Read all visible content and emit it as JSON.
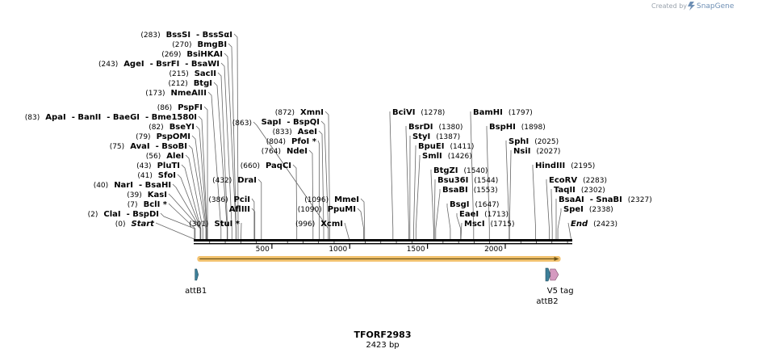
{
  "credit": {
    "prefix": "Created by",
    "brand": "SnapGene"
  },
  "map": {
    "name": "TFORF2983",
    "length_label": "2423 bp",
    "length": 2423,
    "ticks": [
      {
        "value": 500,
        "label": "500"
      },
      {
        "value": 1000,
        "label": "1000"
      },
      {
        "value": 1500,
        "label": "1500"
      },
      {
        "value": 2000,
        "label": "2000"
      }
    ]
  },
  "sites": [
    {
      "id": "bsssi",
      "pos": 283,
      "parts": [
        {
          "t": "(283)",
          "k": "p"
        },
        {
          "t": "BssSI",
          "k": "n"
        },
        {
          "t": "- BssSαI",
          "k": "n"
        }
      ]
    },
    {
      "id": "bmgbi",
      "pos": 270,
      "parts": [
        {
          "t": "(270)",
          "k": "p"
        },
        {
          "t": "BmgBI",
          "k": "n"
        }
      ]
    },
    {
      "id": "bsihkai",
      "pos": 269,
      "parts": [
        {
          "t": "(269)",
          "k": "p"
        },
        {
          "t": "BsiHKAI",
          "k": "n"
        }
      ]
    },
    {
      "id": "agei",
      "pos": 243,
      "parts": [
        {
          "t": "(243)",
          "k": "p"
        },
        {
          "t": "AgeI",
          "k": "n"
        },
        {
          "t": "- BsrFI",
          "k": "n"
        },
        {
          "t": "- BsaWI",
          "k": "n"
        }
      ]
    },
    {
      "id": "sacii",
      "pos": 215,
      "parts": [
        {
          "t": "(215)",
          "k": "p"
        },
        {
          "t": "SacII",
          "k": "n"
        }
      ]
    },
    {
      "id": "btgi",
      "pos": 212,
      "parts": [
        {
          "t": "(212)",
          "k": "p"
        },
        {
          "t": "BtgI",
          "k": "n"
        }
      ]
    },
    {
      "id": "nmeaiii",
      "pos": 173,
      "parts": [
        {
          "t": "(173)",
          "k": "p"
        },
        {
          "t": "NmeAIII",
          "k": "n"
        }
      ]
    },
    {
      "id": "pspfi",
      "pos": 86,
      "parts": [
        {
          "t": "(86)",
          "k": "p"
        },
        {
          "t": "PspFI",
          "k": "n"
        }
      ]
    },
    {
      "id": "apai",
      "pos": 83,
      "parts": [
        {
          "t": "(83)",
          "k": "p"
        },
        {
          "t": "ApaI",
          "k": "n"
        },
        {
          "t": "- BanII",
          "k": "n"
        },
        {
          "t": "- BaeGI",
          "k": "n"
        },
        {
          "t": "- Bme1580I",
          "k": "n"
        }
      ]
    },
    {
      "id": "bseyi",
      "pos": 82,
      "parts": [
        {
          "t": "(82)",
          "k": "p"
        },
        {
          "t": "BseYI",
          "k": "n"
        }
      ]
    },
    {
      "id": "pspomi",
      "pos": 79,
      "parts": [
        {
          "t": "(79)",
          "k": "p"
        },
        {
          "t": "PspOMI",
          "k": "n"
        }
      ]
    },
    {
      "id": "avai",
      "pos": 75,
      "parts": [
        {
          "t": "(75)",
          "k": "p"
        },
        {
          "t": "AvaI",
          "k": "n"
        },
        {
          "t": "- BsoBI",
          "k": "n"
        }
      ]
    },
    {
      "id": "alei",
      "pos": 56,
      "parts": [
        {
          "t": "(56)",
          "k": "p"
        },
        {
          "t": "AleI",
          "k": "n"
        }
      ]
    },
    {
      "id": "pluti",
      "pos": 43,
      "parts": [
        {
          "t": "(43)",
          "k": "p"
        },
        {
          "t": "PluTI",
          "k": "n"
        }
      ]
    },
    {
      "id": "sfoi",
      "pos": 41,
      "parts": [
        {
          "t": "(41)",
          "k": "p"
        },
        {
          "t": "SfoI",
          "k": "n"
        }
      ]
    },
    {
      "id": "nari",
      "pos": 40,
      "parts": [
        {
          "t": "(40)",
          "k": "p"
        },
        {
          "t": "NarI",
          "k": "n"
        },
        {
          "t": "- BsaHI",
          "k": "n"
        }
      ]
    },
    {
      "id": "kasi",
      "pos": 39,
      "parts": [
        {
          "t": "(39)",
          "k": "p"
        },
        {
          "t": "KasI",
          "k": "n"
        }
      ]
    },
    {
      "id": "bcli",
      "pos": 7,
      "parts": [
        {
          "t": "(7)",
          "k": "p"
        },
        {
          "t": "BclI *",
          "k": "n"
        }
      ]
    },
    {
      "id": "clai",
      "pos": 2,
      "parts": [
        {
          "t": "(2)",
          "k": "p"
        },
        {
          "t": "ClaI",
          "k": "n"
        },
        {
          "t": "- BspDI",
          "k": "n"
        }
      ]
    },
    {
      "id": "start",
      "pos": 0,
      "parts": [
        {
          "t": "(0)",
          "k": "p"
        },
        {
          "t": "Start",
          "k": "i"
        }
      ]
    },
    {
      "id": "bsp1",
      "pos": 863,
      "parts": [
        {
          "t": "(863)",
          "k": "p"
        }
      ]
    },
    {
      "id": "drai",
      "pos": 432,
      "parts": [
        {
          "t": "(432)",
          "k": "p"
        },
        {
          "t": "DraI",
          "k": "n"
        }
      ]
    },
    {
      "id": "pcii",
      "pos": 386,
      "parts": [
        {
          "t": "(386)",
          "k": "p"
        },
        {
          "t": "PciI",
          "k": "n"
        }
      ]
    },
    {
      "id": "afliii",
      "pos": 390,
      "parts": [
        {
          "t": "AflIII",
          "k": "n"
        }
      ]
    },
    {
      "id": "stui",
      "pos": 301,
      "parts": [
        {
          "t": "(301)",
          "k": "p"
        },
        {
          "t": "StuI *",
          "k": "n"
        }
      ]
    },
    {
      "id": "xmni",
      "pos": 872,
      "parts": [
        {
          "t": "(872)",
          "k": "p"
        },
        {
          "t": "XmnI",
          "k": "n"
        }
      ]
    },
    {
      "id": "sapi",
      "pos": 863,
      "parts": [
        {
          "t": "SapI",
          "k": "n"
        },
        {
          "t": "- BspQI",
          "k": "n"
        }
      ]
    },
    {
      "id": "asei",
      "pos": 833,
      "parts": [
        {
          "t": "(833)",
          "k": "p"
        },
        {
          "t": "AseI",
          "k": "n"
        }
      ]
    },
    {
      "id": "pfoi",
      "pos": 804,
      "parts": [
        {
          "t": "(804)",
          "k": "p"
        },
        {
          "t": "PfoI *",
          "k": "n"
        }
      ]
    },
    {
      "id": "ndei",
      "pos": 764,
      "parts": [
        {
          "t": "(764)",
          "k": "p"
        },
        {
          "t": "NdeI",
          "k": "n"
        }
      ]
    },
    {
      "id": "paqci",
      "pos": 660,
      "parts": [
        {
          "t": "(660)",
          "k": "p"
        },
        {
          "t": "PaqCI",
          "k": "n"
        }
      ]
    },
    {
      "id": "mmei",
      "pos": 1096,
      "parts": [
        {
          "t": "(1096)",
          "k": "p"
        },
        {
          "t": "MmeI",
          "k": "n"
        }
      ]
    },
    {
      "id": "ppumi",
      "pos": 1090,
      "parts": [
        {
          "t": "(1090)",
          "k": "p"
        },
        {
          "t": "PpuMI",
          "k": "n"
        }
      ]
    },
    {
      "id": "xcmi",
      "pos": 996,
      "parts": [
        {
          "t": "(996)",
          "k": "p"
        },
        {
          "t": "XcmI",
          "k": "n"
        }
      ]
    },
    {
      "id": "bcivi",
      "pos": 1278,
      "parts": [
        {
          "t": "BciVI",
          "k": "n"
        },
        {
          "t": "(1278)",
          "k": "p"
        }
      ]
    },
    {
      "id": "bsrdi",
      "pos": 1380,
      "parts": [
        {
          "t": "BsrDI",
          "k": "n"
        },
        {
          "t": "(1380)",
          "k": "p"
        }
      ]
    },
    {
      "id": "styi",
      "pos": 1387,
      "parts": [
        {
          "t": "StyI",
          "k": "n"
        },
        {
          "t": "(1387)",
          "k": "p"
        }
      ]
    },
    {
      "id": "bpuei",
      "pos": 1411,
      "parts": [
        {
          "t": "BpuEI",
          "k": "n"
        },
        {
          "t": "(1411)",
          "k": "p"
        }
      ]
    },
    {
      "id": "smli",
      "pos": 1426,
      "parts": [
        {
          "t": "SmlI",
          "k": "n"
        },
        {
          "t": "(1426)",
          "k": "p"
        }
      ]
    },
    {
      "id": "btgzi",
      "pos": 1540,
      "parts": [
        {
          "t": "BtgZI",
          "k": "n"
        },
        {
          "t": "(1540)",
          "k": "p"
        }
      ]
    },
    {
      "id": "bsu36i",
      "pos": 1544,
      "parts": [
        {
          "t": "Bsu36I",
          "k": "n"
        },
        {
          "t": "(1544)",
          "k": "p"
        }
      ]
    },
    {
      "id": "bsabi",
      "pos": 1553,
      "parts": [
        {
          "t": "BsaBI",
          "k": "n"
        },
        {
          "t": "(1553)",
          "k": "p"
        }
      ]
    },
    {
      "id": "bsgi",
      "pos": 1647,
      "parts": [
        {
          "t": "BsgI",
          "k": "n"
        },
        {
          "t": "(1647)",
          "k": "p"
        }
      ]
    },
    {
      "id": "eaei",
      "pos": 1713,
      "parts": [
        {
          "t": "EaeI",
          "k": "n"
        },
        {
          "t": "(1713)",
          "k": "p"
        }
      ]
    },
    {
      "id": "msci",
      "pos": 1715,
      "parts": [
        {
          "t": "MscI",
          "k": "n"
        },
        {
          "t": "(1715)",
          "k": "p"
        }
      ]
    },
    {
      "id": "bamhi",
      "pos": 1797,
      "parts": [
        {
          "t": "BamHI",
          "k": "n"
        },
        {
          "t": "(1797)",
          "k": "p"
        }
      ]
    },
    {
      "id": "bsphi",
      "pos": 1898,
      "parts": [
        {
          "t": "BspHI",
          "k": "n"
        },
        {
          "t": "(1898)",
          "k": "p"
        }
      ]
    },
    {
      "id": "sphi",
      "pos": 2025,
      "parts": [
        {
          "t": "SphI",
          "k": "n"
        },
        {
          "t": "(2025)",
          "k": "p"
        }
      ]
    },
    {
      "id": "nsii",
      "pos": 2027,
      "parts": [
        {
          "t": "NsiI",
          "k": "n"
        },
        {
          "t": "(2027)",
          "k": "p"
        }
      ]
    },
    {
      "id": "hindiii",
      "pos": 2195,
      "parts": [
        {
          "t": "HindIII",
          "k": "n"
        },
        {
          "t": "(2195)",
          "k": "p"
        }
      ]
    },
    {
      "id": "ecorv",
      "pos": 2283,
      "parts": [
        {
          "t": "EcoRV",
          "k": "n"
        },
        {
          "t": "(2283)",
          "k": "p"
        }
      ]
    },
    {
      "id": "taqii",
      "pos": 2302,
      "parts": [
        {
          "t": "TaqII",
          "k": "n"
        },
        {
          "t": "(2302)",
          "k": "p"
        }
      ]
    },
    {
      "id": "bsaai",
      "pos": 2327,
      "parts": [
        {
          "t": "BsaAI",
          "k": "n"
        },
        {
          "t": "- SnaBI",
          "k": "n"
        },
        {
          "t": "(2327)",
          "k": "p"
        }
      ]
    },
    {
      "id": "spei",
      "pos": 2338,
      "parts": [
        {
          "t": "SpeI",
          "k": "n"
        },
        {
          "t": "(2338)",
          "k": "p"
        }
      ]
    },
    {
      "id": "end",
      "pos": 2423,
      "parts": [
        {
          "t": "End",
          "k": "i"
        },
        {
          "t": "(2423)",
          "k": "p"
        }
      ]
    }
  ],
  "features": [
    {
      "id": "attb1",
      "label": "attB1",
      "start": 1,
      "end": 25,
      "color": "#3d7f99"
    },
    {
      "id": "orf",
      "label": "",
      "start": 20,
      "end": 2330,
      "color": "#f3c370"
    },
    {
      "id": "attb2",
      "label": "attB2",
      "start": 2270,
      "end": 2295,
      "color": "#3d7f99"
    },
    {
      "id": "v5tag",
      "label": "V5 tag",
      "start": 2300,
      "end": 2342,
      "color": "#d59ac0"
    }
  ]
}
